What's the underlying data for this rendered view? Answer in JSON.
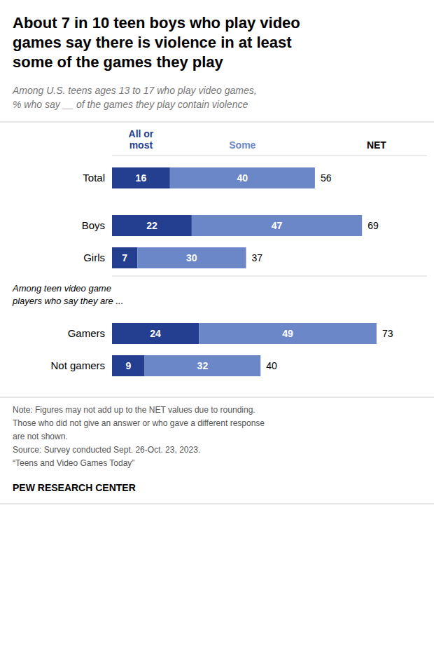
{
  "chart_data": {
    "type": "bar",
    "orientation": "horizontal",
    "stacked": true,
    "data_labels": true,
    "tick_labels": false,
    "grid": false,
    "title": "About 7 in 10 teen boys who play video\ngames say there is violence in at least\nsome of the games they play",
    "subtitle": "Among U.S. teens ages 13 to 17 who play video games,\n% who say __ of the games they play contain violence",
    "categories": [
      "Total",
      "Boys",
      "Girls",
      "Gamers",
      "Not gamers"
    ],
    "series": [
      {
        "name": "All or\nmost",
        "color": "#243f8f",
        "values": [
          16,
          22,
          7,
          24,
          9
        ]
      },
      {
        "name": "Some",
        "color": "#6b87c7",
        "values": [
          40,
          47,
          30,
          49,
          32
        ]
      }
    ],
    "net": {
      "name": "NET",
      "values": [
        56,
        69,
        37,
        73,
        40
      ]
    },
    "group_label": "Among teen video game\nplayers who say they are ...",
    "xlim": [
      0,
      85
    ],
    "note": "Note: Figures may not add up to the NET values due to rounding.\nThose who did not give an answer or who gave a different response\nare not shown.\nSource: Survey conducted Sept. 26-Oct. 23, 2023.\n“Teens and Video Games Today”",
    "source": "PEW RESEARCH CENTER"
  }
}
